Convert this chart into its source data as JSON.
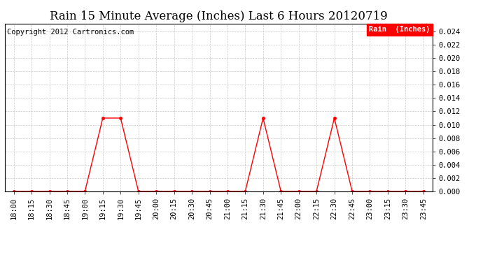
{
  "title": "Rain 15 Minute Average (Inches) Last 6 Hours 20120719",
  "copyright": "Copyright 2012 Cartronics.com",
  "legend_label": "Rain  (Inches)",
  "line_color": "#ff0000",
  "background_color": "#ffffff",
  "grid_color": "#c8c8c8",
  "ylim": [
    0.0,
    0.0252
  ],
  "yticks": [
    0.0,
    0.002,
    0.004,
    0.006,
    0.008,
    0.01,
    0.012,
    0.014,
    0.016,
    0.018,
    0.02,
    0.022,
    0.024
  ],
  "time_labels": [
    "18:00",
    "18:15",
    "18:30",
    "18:45",
    "19:00",
    "19:15",
    "19:30",
    "19:45",
    "20:00",
    "20:15",
    "20:30",
    "20:45",
    "21:00",
    "21:15",
    "21:30",
    "21:45",
    "22:00",
    "22:15",
    "22:30",
    "22:45",
    "23:00",
    "23:15",
    "23:30",
    "23:45"
  ],
  "values": [
    0.0,
    0.0,
    0.0,
    0.0,
    0.0,
    0.011,
    0.011,
    0.0,
    0.0,
    0.0,
    0.0,
    0.0,
    0.0,
    0.0,
    0.011,
    0.0,
    0.0,
    0.0,
    0.011,
    0.0,
    0.0,
    0.0,
    0.0,
    0.0
  ],
  "title_fontsize": 12,
  "tick_fontsize": 7.5,
  "copyright_fontsize": 7.5,
  "legend_fontsize": 7.5,
  "marker_size": 3
}
